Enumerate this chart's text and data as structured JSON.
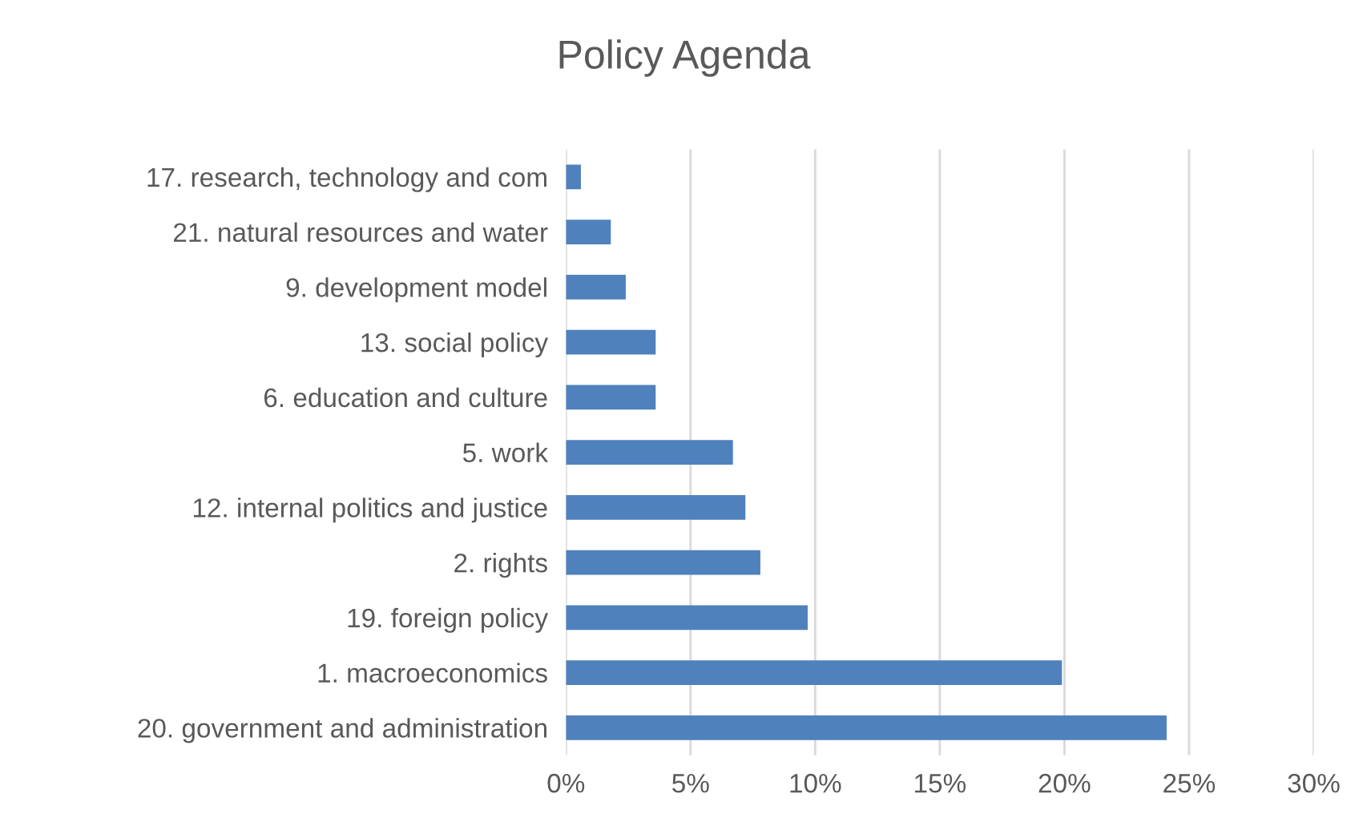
{
  "chart_data": {
    "type": "bar",
    "orientation": "horizontal",
    "title": "Policy Agenda",
    "categories": [
      "17. research, technology and com",
      "21. natural resources and water",
      "9. development model",
      "13. social policy",
      "6. education and culture",
      "5. work",
      "12. internal politics and justice",
      "2. rights",
      "19. foreign policy",
      "1. macroeconomics",
      "20. government and administration"
    ],
    "values": [
      0.6,
      1.8,
      2.4,
      3.6,
      3.6,
      6.7,
      7.2,
      7.8,
      9.7,
      19.9,
      24.1
    ],
    "color": "#4f81bd",
    "xlim": [
      0,
      30
    ],
    "xticks": [
      {
        "value": 0,
        "label": "0%"
      },
      {
        "value": 5,
        "label": "5%"
      },
      {
        "value": 10,
        "label": "10%"
      },
      {
        "value": 15,
        "label": "15%"
      },
      {
        "value": 20,
        "label": "20%"
      },
      {
        "value": 25,
        "label": "25%"
      },
      {
        "value": 30,
        "label": "30%"
      }
    ],
    "grid": "x",
    "legend": false
  }
}
